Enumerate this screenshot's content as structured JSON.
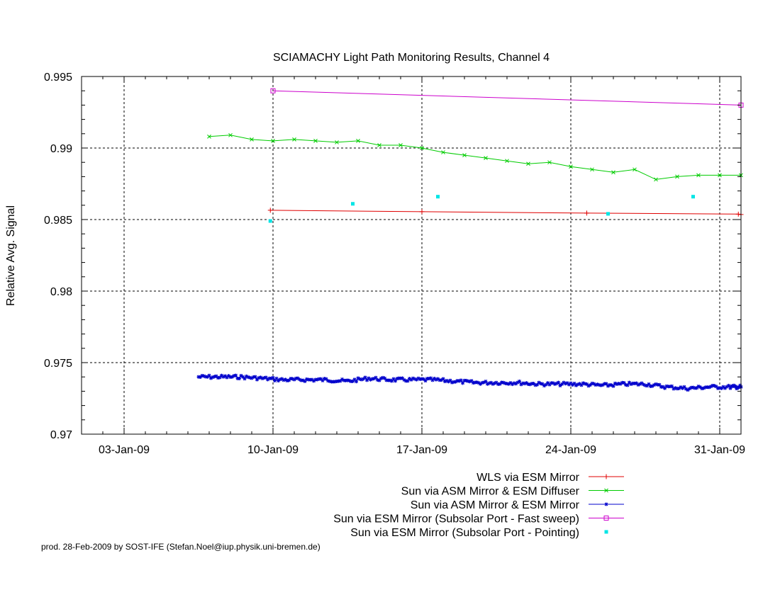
{
  "chart_data": {
    "type": "line",
    "title": "SCIAMACHY Light Path Monitoring Results, Channel 4",
    "ylabel": "Relative Avg. Signal",
    "xlabel": "",
    "xlim": [
      "2009-01-01",
      "2009-02-01"
    ],
    "ylim": [
      0.97,
      0.995
    ],
    "grid": true,
    "legend_position": "below plot, right",
    "x_ticks": [
      {
        "date": "2009-01-03",
        "label": "03-Jan-09"
      },
      {
        "date": "2009-01-10",
        "label": "10-Jan-09"
      },
      {
        "date": "2009-01-17",
        "label": "17-Jan-09"
      },
      {
        "date": "2009-01-24",
        "label": "24-Jan-09"
      },
      {
        "date": "2009-01-31",
        "label": "31-Jan-09"
      }
    ],
    "y_ticks": [
      {
        "value": 0.97,
        "label": "0.97"
      },
      {
        "value": 0.975,
        "label": "0.975"
      },
      {
        "value": 0.98,
        "label": "0.98"
      },
      {
        "value": 0.985,
        "label": "0.985"
      },
      {
        "value": 0.99,
        "label": "0.99"
      },
      {
        "value": 0.995,
        "label": "0.995"
      }
    ],
    "series": [
      {
        "name": "WLS via ESM Mirror",
        "color": "#e00000",
        "style": "line+plus",
        "x": [
          "2009-01-09T21:00",
          "2009-01-17T00:00",
          "2009-01-24T18:00",
          "2009-01-31T21:00",
          "2009-02-01T00:00"
        ],
        "y": [
          0.98565,
          0.98555,
          0.98545,
          0.98538,
          0.98535
        ]
      },
      {
        "name": "Sun via ASM Mirror & ESM Diffuser",
        "color": "#00cc00",
        "style": "line+x",
        "x": [
          "2009-01-07T00:00",
          "2009-01-08T00:00",
          "2009-01-09T00:00",
          "2009-01-10T00:00",
          "2009-01-11T00:00",
          "2009-01-12T00:00",
          "2009-01-13T00:00",
          "2009-01-14T00:00",
          "2009-01-15T00:00",
          "2009-01-16T00:00",
          "2009-01-17T00:00",
          "2009-01-18T00:00",
          "2009-01-19T00:00",
          "2009-01-20T00:00",
          "2009-01-21T00:00",
          "2009-01-22T00:00",
          "2009-01-23T00:00",
          "2009-01-24T00:00",
          "2009-01-25T00:00",
          "2009-01-26T00:00",
          "2009-01-27T00:00",
          "2009-01-28T00:00",
          "2009-01-29T00:00",
          "2009-01-30T00:00",
          "2009-01-31T00:00",
          "2009-02-01T00:00"
        ],
        "y": [
          0.9908,
          0.9909,
          0.9906,
          0.9905,
          0.9906,
          0.9905,
          0.9904,
          0.9905,
          0.9902,
          0.9902,
          0.99,
          0.9897,
          0.9895,
          0.9893,
          0.9891,
          0.9889,
          0.989,
          0.9887,
          0.9885,
          0.9883,
          0.9885,
          0.9878,
          0.988,
          0.9881,
          0.9881,
          0.9881
        ]
      },
      {
        "name": "Sun via ASM Mirror & ESM Mirror",
        "color": "#0000cc",
        "style": "line+star",
        "x": [
          "2009-01-06T12:00",
          "2009-01-07T12:00",
          "2009-01-08T12:00",
          "2009-01-09T12:00",
          "2009-01-10T12:00",
          "2009-01-11T12:00",
          "2009-01-12T12:00",
          "2009-01-13T12:00",
          "2009-01-14T12:00",
          "2009-01-15T12:00",
          "2009-01-16T12:00",
          "2009-01-17T12:00",
          "2009-01-18T12:00",
          "2009-01-19T12:00",
          "2009-01-20T12:00",
          "2009-01-21T12:00",
          "2009-01-22T12:00",
          "2009-01-23T12:00",
          "2009-01-24T12:00",
          "2009-01-25T12:00",
          "2009-01-26T12:00",
          "2009-01-27T12:00",
          "2009-01-28T12:00",
          "2009-01-29T12:00",
          "2009-01-30T12:00",
          "2009-01-31T12:00",
          "2009-02-01T00:00"
        ],
        "y": [
          0.974,
          0.974,
          0.974,
          0.9739,
          0.9738,
          0.9738,
          0.9738,
          0.9737,
          0.9739,
          0.9738,
          0.9738,
          0.9738,
          0.9737,
          0.9736,
          0.9736,
          0.9736,
          0.9735,
          0.9735,
          0.9735,
          0.9734,
          0.9735,
          0.9735,
          0.9733,
          0.9732,
          0.9733,
          0.9733,
          0.9733
        ],
        "noise": 0.00012
      },
      {
        "name": "Sun via ESM Mirror (Subsolar Port - Fast sweep)",
        "color": "#cc00cc",
        "style": "line+box",
        "x": [
          "2009-01-10T00:00",
          "2009-02-01T00:00"
        ],
        "y": [
          0.994,
          0.993
        ]
      },
      {
        "name": "Sun via ESM Mirror (Subsolar Port - Pointing)",
        "color": "#00e5e5",
        "style": "points",
        "x": [
          "2009-01-09T21:00",
          "2009-01-13T18:00",
          "2009-01-17T18:00",
          "2009-01-25T18:00",
          "2009-01-29T18:00"
        ],
        "y": [
          0.9849,
          0.9861,
          0.9866,
          0.9854,
          0.9866
        ]
      }
    ]
  },
  "footer": {
    "credit": "prod. 28-Feb-2009 by SOST-IFE (Stefan.Noel@iup.physik.uni-bremen.de)"
  }
}
